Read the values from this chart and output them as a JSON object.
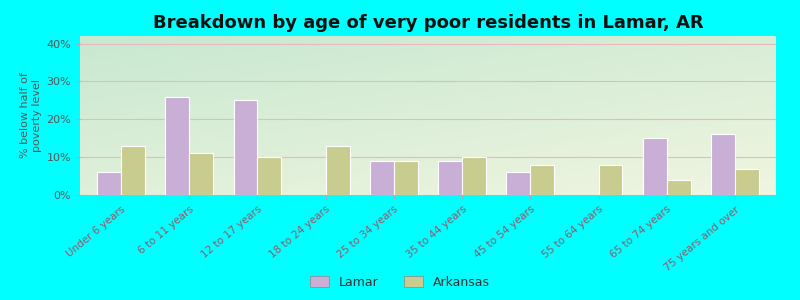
{
  "title": "Breakdown by age of very poor residents in Lamar, AR",
  "ylabel": "% below half of\npoverty level",
  "categories": [
    "Under 6 years",
    "6 to 11 years",
    "12 to 17 years",
    "18 to 24 years",
    "25 to 34 years",
    "35 to 44 years",
    "45 to 54 years",
    "55 to 64 years",
    "65 to 74 years",
    "75 years and over"
  ],
  "lamar_values": [
    6,
    26,
    25,
    0,
    9,
    9,
    6,
    0,
    15,
    16
  ],
  "arkansas_values": [
    13,
    11,
    10,
    13,
    9,
    10,
    8,
    8,
    4,
    7
  ],
  "lamar_color": "#c9aed6",
  "arkansas_color": "#c8cc8e",
  "ylim": [
    0,
    42
  ],
  "yticks": [
    0,
    10,
    20,
    30,
    40
  ],
  "ytick_labels": [
    "0%",
    "10%",
    "20%",
    "30%",
    "40%"
  ],
  "grid_color": "#e8b8c0",
  "bg_top_left": "#c8e8d0",
  "bg_bottom_right": "#f0f5e0",
  "outer_bg": "#00ffff",
  "bar_width": 0.35,
  "title_fontsize": 13,
  "legend_lamar": "Lamar",
  "legend_arkansas": "Arkansas",
  "tick_label_color": "#995566",
  "axis_label_color": "#555555"
}
